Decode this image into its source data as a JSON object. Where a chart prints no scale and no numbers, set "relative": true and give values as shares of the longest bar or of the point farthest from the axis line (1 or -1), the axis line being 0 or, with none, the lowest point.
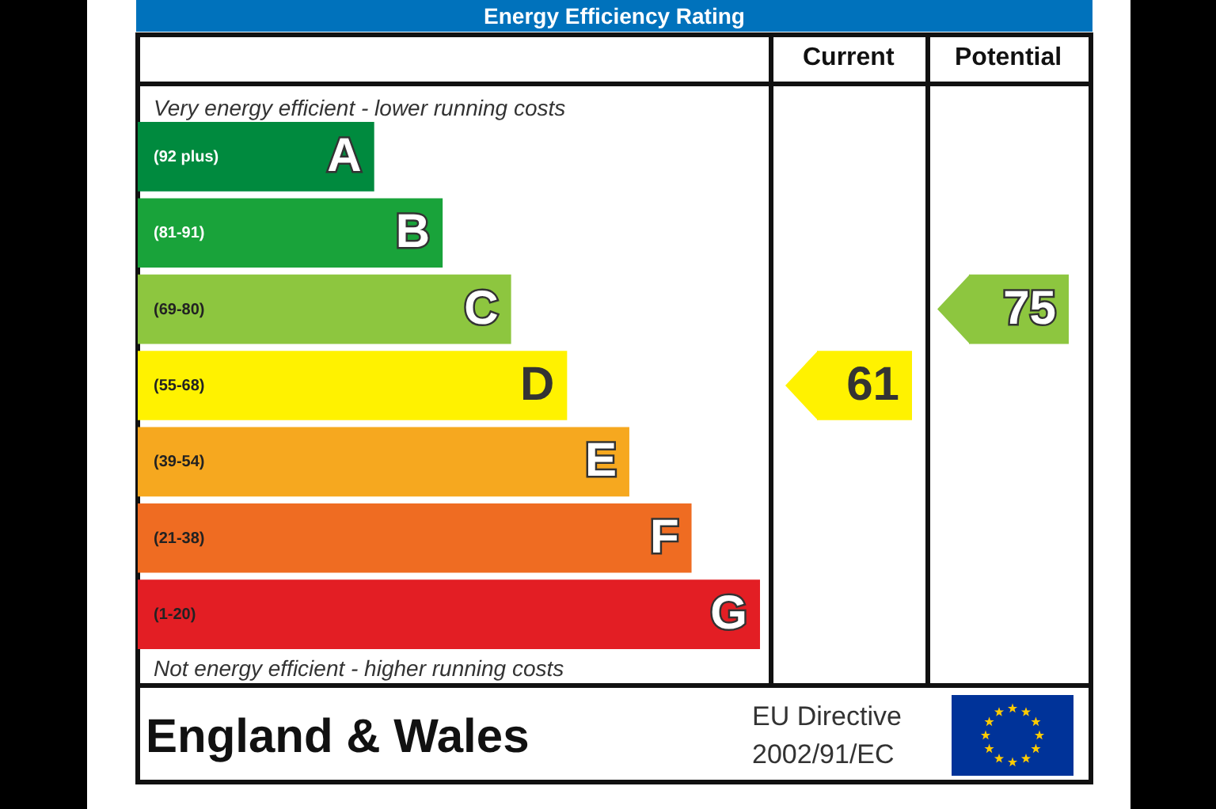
{
  "chart_data": [
    {
      "type": "bar",
      "orientation": "horizontal",
      "relative": true,
      "title": "Energy Efficiency Rating",
      "categories": [
        "A",
        "B",
        "C",
        "D",
        "E",
        "F",
        "G"
      ],
      "values": [
        0.38,
        0.49,
        0.6,
        0.69,
        0.79,
        0.89,
        1
      ],
      "colors": [
        "#008a3e",
        "#19a33a",
        "#8dc63f",
        "#fff200",
        "#f6a81f",
        "#ef6c22",
        "#e31e24"
      ],
      "annotations": [
        "Very energy efficient - lower running costs",
        "Not energy efficient - higher running costs",
        "England & Wales",
        "EU Directive",
        "2002/91/EC",
        "(92 plus)",
        "(81-91)",
        "(69-80)",
        "(55-68)",
        "(39-54)",
        "(21-38)",
        "(1-20)"
      ]
    },
    {
      "type": "bar",
      "orientation": "horizontal",
      "title": "Current",
      "categories": [
        null,
        null,
        null,
        null,
        null,
        null,
        null
      ],
      "values": [
        null,
        null,
        null,
        61,
        null,
        null,
        null
      ],
      "colors": [
        null,
        null,
        null,
        "#fff200",
        null,
        null,
        null
      ],
      "data_labels": true
    },
    {
      "type": "bar",
      "orientation": "horizontal",
      "title": "Potential",
      "categories": [
        null,
        null,
        null,
        null,
        null,
        null,
        null
      ],
      "values": [
        null,
        null,
        75,
        null,
        null,
        null,
        null
      ],
      "colors": [
        null,
        null,
        "#8dc63f",
        null,
        null,
        null,
        null
      ],
      "data_labels": true
    }
  ]
}
